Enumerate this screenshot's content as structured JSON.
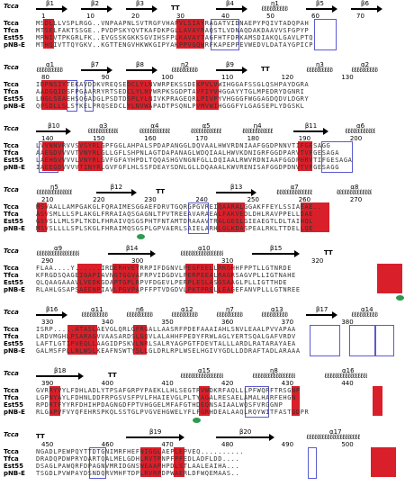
{
  "seq_names": [
    "Tcca",
    "Tfca",
    "Est55",
    "pNB-E"
  ],
  "ref_label": "Tcca",
  "blocks": [
    {
      "ruler": [
        "1",
        "10",
        "20",
        "30",
        "40",
        "50",
        "60",
        "70"
      ],
      "elements": [
        {
          "type": "strand",
          "label": "β1"
        },
        {
          "type": "strand",
          "label": "β2"
        },
        {
          "type": "strand",
          "label": "β3"
        },
        {
          "type": "tt",
          "label": "TT"
        },
        {
          "type": "strand",
          "label": "β4"
        },
        {
          "type": "helix",
          "label": "η1"
        },
        {
          "type": "strand",
          "label": "β5"
        },
        {
          "type": "strand",
          "label": "β6"
        }
      ],
      "rows": [
        "MSDLLLVSPLRGG..VNPAAPNLSVTRGFVHAPVLSIAYRAGATVIDNAEPYPQIVTADQPAH",
        "MTSELFAKTSSGE..PVDPSKYQVTKAFDKPGLLAVAYRAQSTLVDNAQDAKDAAVVSFGPYP",
        "MRNIVTPKGRLFK..EVGSSKGKKSGVIHSFPLKAVAYTAGFHTFDRKAMSDIAKQLGAVLPTQ",
        "MTHQIVTTQYGKV..KGTTENGVHKWKGIPYAKPPVGQWRFKAPEPPEVWEDVLDATAYGPICP"
      ],
      "marker": false
    },
    {
      "ruler": [
        "80",
        "90",
        "100",
        "110",
        "120",
        "130"
      ],
      "elements": [
        {
          "type": "helix",
          "label": "α1"
        },
        {
          "type": "strand",
          "label": "β7"
        },
        {
          "type": "strand",
          "label": "β8"
        },
        {
          "type": "helix",
          "label": "η2"
        },
        {
          "type": "strand",
          "label": "β9"
        },
        {
          "type": "tt",
          "label": "TT"
        },
        {
          "type": "helix",
          "label": "η3"
        },
        {
          "type": "helix",
          "label": "α2"
        }
      ],
      "rows": [
        "IDPNSIYTEKAVDDKVREQSEDCLYLNVWRPEKSSDEKPVLVWIHGGAFSSGLQSHPAYDGRA",
        "AADGQIDSFPGAARRYRTSEDCLYLNVWRPKSGDPTAVFIYVHGGAYYTGLMPEDRYDGNRI",
        "LNGLSEAEHSQGADGLPSDTDSPLYLNIVKPRAGEQRLPIVFYVHGGGFWGGAGDQDVLDGRY",
        "QPSDLLSLSYKELPRQSEDCLYLNVWAPADTPSQNLPVMVWIHGGGFYLGAGSEPLYDGSKL"
      ],
      "marker": false
    },
    {
      "ruler": [
        "140",
        "150",
        "160",
        "170",
        "180",
        "190",
        "200"
      ],
      "elements": [
        {
          "type": "strand",
          "label": "β10"
        },
        {
          "type": "helix",
          "label": "α3"
        },
        {
          "type": "helix",
          "label": "α4"
        },
        {
          "type": "helix",
          "label": "α5"
        },
        {
          "type": "helix",
          "label": "η4"
        },
        {
          "type": "strand",
          "label": "β11"
        },
        {
          "type": "helix",
          "label": "α6"
        }
      ],
      "rows": [
        "LVVNNVRVVSVSYRLGPFGGLAHPALSPDAPANGGLDQVAALHWVRDNIAAFGGDPNNVTIFGESAGG",
        "AAEGDVVVVTVNYRLGLLGFLSHPNLAGTDAPANAGLWDQIAALHWVKDNIGRFGGDPARVTVFGESAGA",
        "LAEHGVVVVLVNYRLGVFGFAYHPDLTQQASHGVNGNFGLLDQIAALRWVRDNIAAFGGDPHRVTIFGESAGA",
        "IAEEGDVVVVTINYRLGVFGFLHLSSFDEAYSDNLGLLDQAAALKWVRENISAFGGDPDNVTVFGESAGG"
      ],
      "marker": false
    },
    {
      "ruler": [
        "210",
        "220",
        "230",
        "240",
        "250",
        "260",
        "270"
      ],
      "elements": [
        {
          "type": "helix",
          "label": "η5"
        },
        {
          "type": "strand",
          "label": "β12"
        },
        {
          "type": "tt",
          "label": "TT"
        },
        {
          "type": "strand",
          "label": "β13"
        },
        {
          "type": "helix",
          "label": "α7"
        },
        {
          "type": "helix",
          "label": "α8"
        }
      ],
      "rows": [
        "MSVAALLAMPGAKGLFQRAIMESGGAEFDRVTGQRGPGVREIQAARALGGAKFFEYLSSIAEAE..",
        "ASVSMLLLSPLAKGLFRRAIAQSGAGNLTPVTREEAVARAEALFAKVEDLDHLRAVPPELLDAE",
        "GSVSLLMLSPLTKDLFHRAIVQSGSPHTFNTAMTDRAAAVTRALGESLGIEAEGTLDLTAIHQL",
        "MSVSLLLLSPLSKGLFHRAIMQSGSPLGPVAERLSAIELARHLGLKDASPEALRKLTTDELLQE"
      ],
      "marker": true
    },
    {
      "ruler": [
        "290",
        "300",
        "310",
        "320"
      ],
      "elements": [
        {
          "type": "helix",
          "label": "α9"
        },
        {
          "type": "strand",
          "label": "β14"
        },
        {
          "type": "helix",
          "label": "α10"
        },
        {
          "type": "strand",
          "label": "β15"
        },
        {
          "type": "tt",
          "label": "TT"
        }
      ],
      "rows": [
        "FLAA....Y......IRDERHVEYRRPIFDGNVLPEGFEELLRKGHHFPPTLLGTNRDE",
        "KFRGDSQAGEIGAPIAVNGTGGVAFRPVIDGDVLPERPEEALRAGRSAGVPLLIGTNAHE",
        "QLQAAGAAAVLVEDKGDAPTGPLRPVFDGEVLPERPLESLASGSAAGLPLLIGTTHDE",
        "RLAHLGSAPSAEENPIAVLPGVPAPFFPTVDGDVLPKTPRELLEAGEFANVPLLLGTNREE"
      ],
      "marker": true
    },
    {
      "ruler": [
        "330",
        "340",
        "350",
        "360",
        "370",
        "380"
      ],
      "elements": [
        {
          "type": "strand",
          "label": "β16"
        },
        {
          "type": "helix",
          "label": "α11"
        },
        {
          "type": "helix",
          "label": "η6"
        },
        {
          "type": "helix",
          "label": "α12"
        },
        {
          "type": "helix",
          "label": "η7"
        },
        {
          "type": "helix",
          "label": "α13"
        },
        {
          "type": "strand",
          "label": "β17"
        },
        {
          "type": "helix",
          "label": "α14"
        }
      ],
      "rows": [
        "ISRP.....ATASLAEVGLQRLGFRGALLAASRFPDEFAAAIAHLSNVLEAALPVVAPAA",
        "LRDVMGHLPSARAGVVAASARDSLGQVLALAHHFPEDYFRWLAGLYERTSQALGAFVRDV",
        "LAFTLGTIPVEQLLAAGIDPSKVLNRLSALRYAGPGTFDEVTALLLARDLRATARAYAEA",
        "GALMSFPLLNLWSLKEAFNSWTYSLLGLDRLRPLWSELHGIVYGDLLDDRAFTADLARAAA"
      ],
      "marker": false
    },
    {
      "ruler": [
        "390",
        "400",
        "410",
        "420",
        "430",
        "440"
      ],
      "elements": [
        {
          "type": "strand",
          "label": "β18"
        },
        {
          "type": "tt",
          "label": "TT"
        },
        {
          "type": "helix",
          "label": "α15"
        },
        {
          "type": "helix",
          "label": "η8"
        },
        {
          "type": "helix",
          "label": "α16"
        }
      ],
      "rows": [
        "GVRRYVYLFDHLADLYTPSAFGRPYPAEKLLHLSEGTRVWDKRFAQLLLPFWQRFTRSGNP",
        "LGPNYAYLFDHNLDDFRPGSVSFPVLFHAIEVGLPLTYAGALRESAELAMALHARFEHGN",
        "RPDRTFYYRFDHIHPDAGNGDFPTVHGGELMFAFGTHDEQNSAIAALWQSFVRGGNP",
        "RLGAPVFVYQFEHRSPKQLSSTGLPVGVEHGWELYFLFGRHDEALAAQLRQYWITFASTGDPR"
      ],
      "marker": true
    },
    {
      "ruler": [
        "450",
        "460",
        "470",
        "480",
        "490",
        "500"
      ],
      "elements": [
        {
          "type": "tt",
          "label": "TT"
        },
        {
          "type": "strand",
          "label": "β19"
        },
        {
          "type": "strand",
          "label": "β20"
        },
        {
          "type": "helix",
          "label": "α17"
        }
      ],
      "rows": [
        "NGADLPEWPQYTTDTGNIMRFHEFNIGGLAEPLEPVEQ..........",
        "DRADQPDWPRYDARTQALMELGDHLRVTPNPFPFEDLADFLDD....",
        "DSAGLPAWQRFDPAGNVMRIDGNSWEAAPHPDLSTLAALEAIHA...",
        "TSGDLPVWPAYDSNDQRVMHFTDPLRVRPDPWAERLDFWQEMAAS.."
      ],
      "marker": false
    }
  ]
}
